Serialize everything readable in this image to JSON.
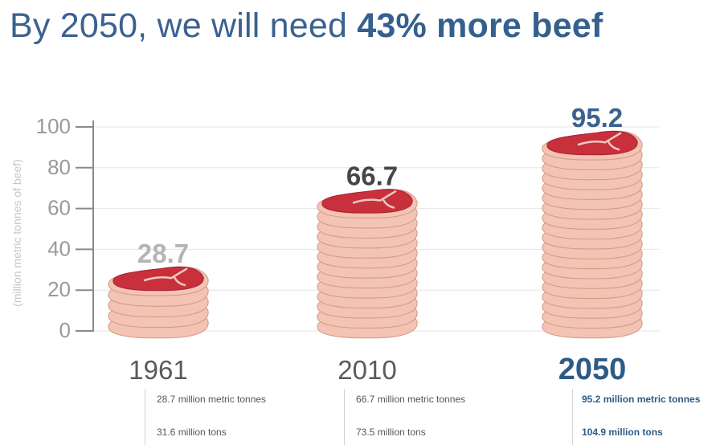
{
  "title": {
    "prefix": "By 2050, we will need ",
    "emphasis": "43% more beef"
  },
  "chart_data": {
    "type": "bar",
    "title": "By 2050, we will need 43% more beef",
    "ylabel": "(million metric tonnes of beef)",
    "xlabel": "",
    "ylim": [
      0,
      100
    ],
    "yticks": [
      0,
      20,
      40,
      60,
      80,
      100
    ],
    "categories": [
      "1961",
      "2010",
      "2050"
    ],
    "values": [
      28.7,
      66.7,
      95.2
    ],
    "value_labels": [
      "28.7",
      "66.7",
      "95.2"
    ],
    "grid": true,
    "bar_style": "stacked steak slices",
    "colors": {
      "value_1961": "#b4b4b4",
      "value_2010": "#464646",
      "value_2050": "#3b6190",
      "meat": "#c8303c",
      "fat": "#f3c3b3"
    }
  },
  "notes": [
    {
      "tonnes": "28.7 million metric tonnes",
      "tons": "31.6 million tons"
    },
    {
      "tonnes": "66.7 million metric tonnes",
      "tons": "73.5 million tons"
    },
    {
      "tonnes": "95.2 million metric tonnes",
      "tons": "104.9 million tons"
    }
  ]
}
